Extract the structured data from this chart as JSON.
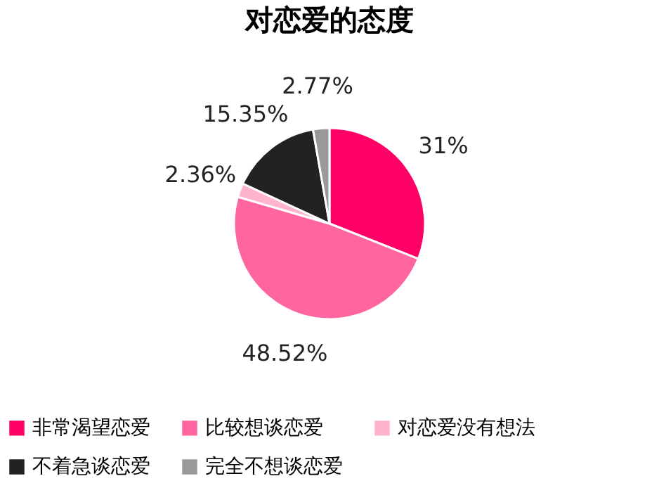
{
  "chart_data": {
    "type": "pie",
    "title": "对恋爱的态度",
    "categories": [
      "非常渴望恋爱",
      "比较想谈恋爱",
      "对恋爱没有想法",
      "不着急谈恋爱",
      "完全不想谈恋爱"
    ],
    "values": [
      31,
      48.52,
      2.36,
      15.35,
      2.77
    ],
    "value_labels": [
      "31%",
      "48.52%",
      "2.36%",
      "15.35%",
      "2.77%"
    ],
    "colors": [
      "#ff0066",
      "#ff66a0",
      "#ffb3cf",
      "#222222",
      "#999999"
    ],
    "legend": "bottom"
  }
}
